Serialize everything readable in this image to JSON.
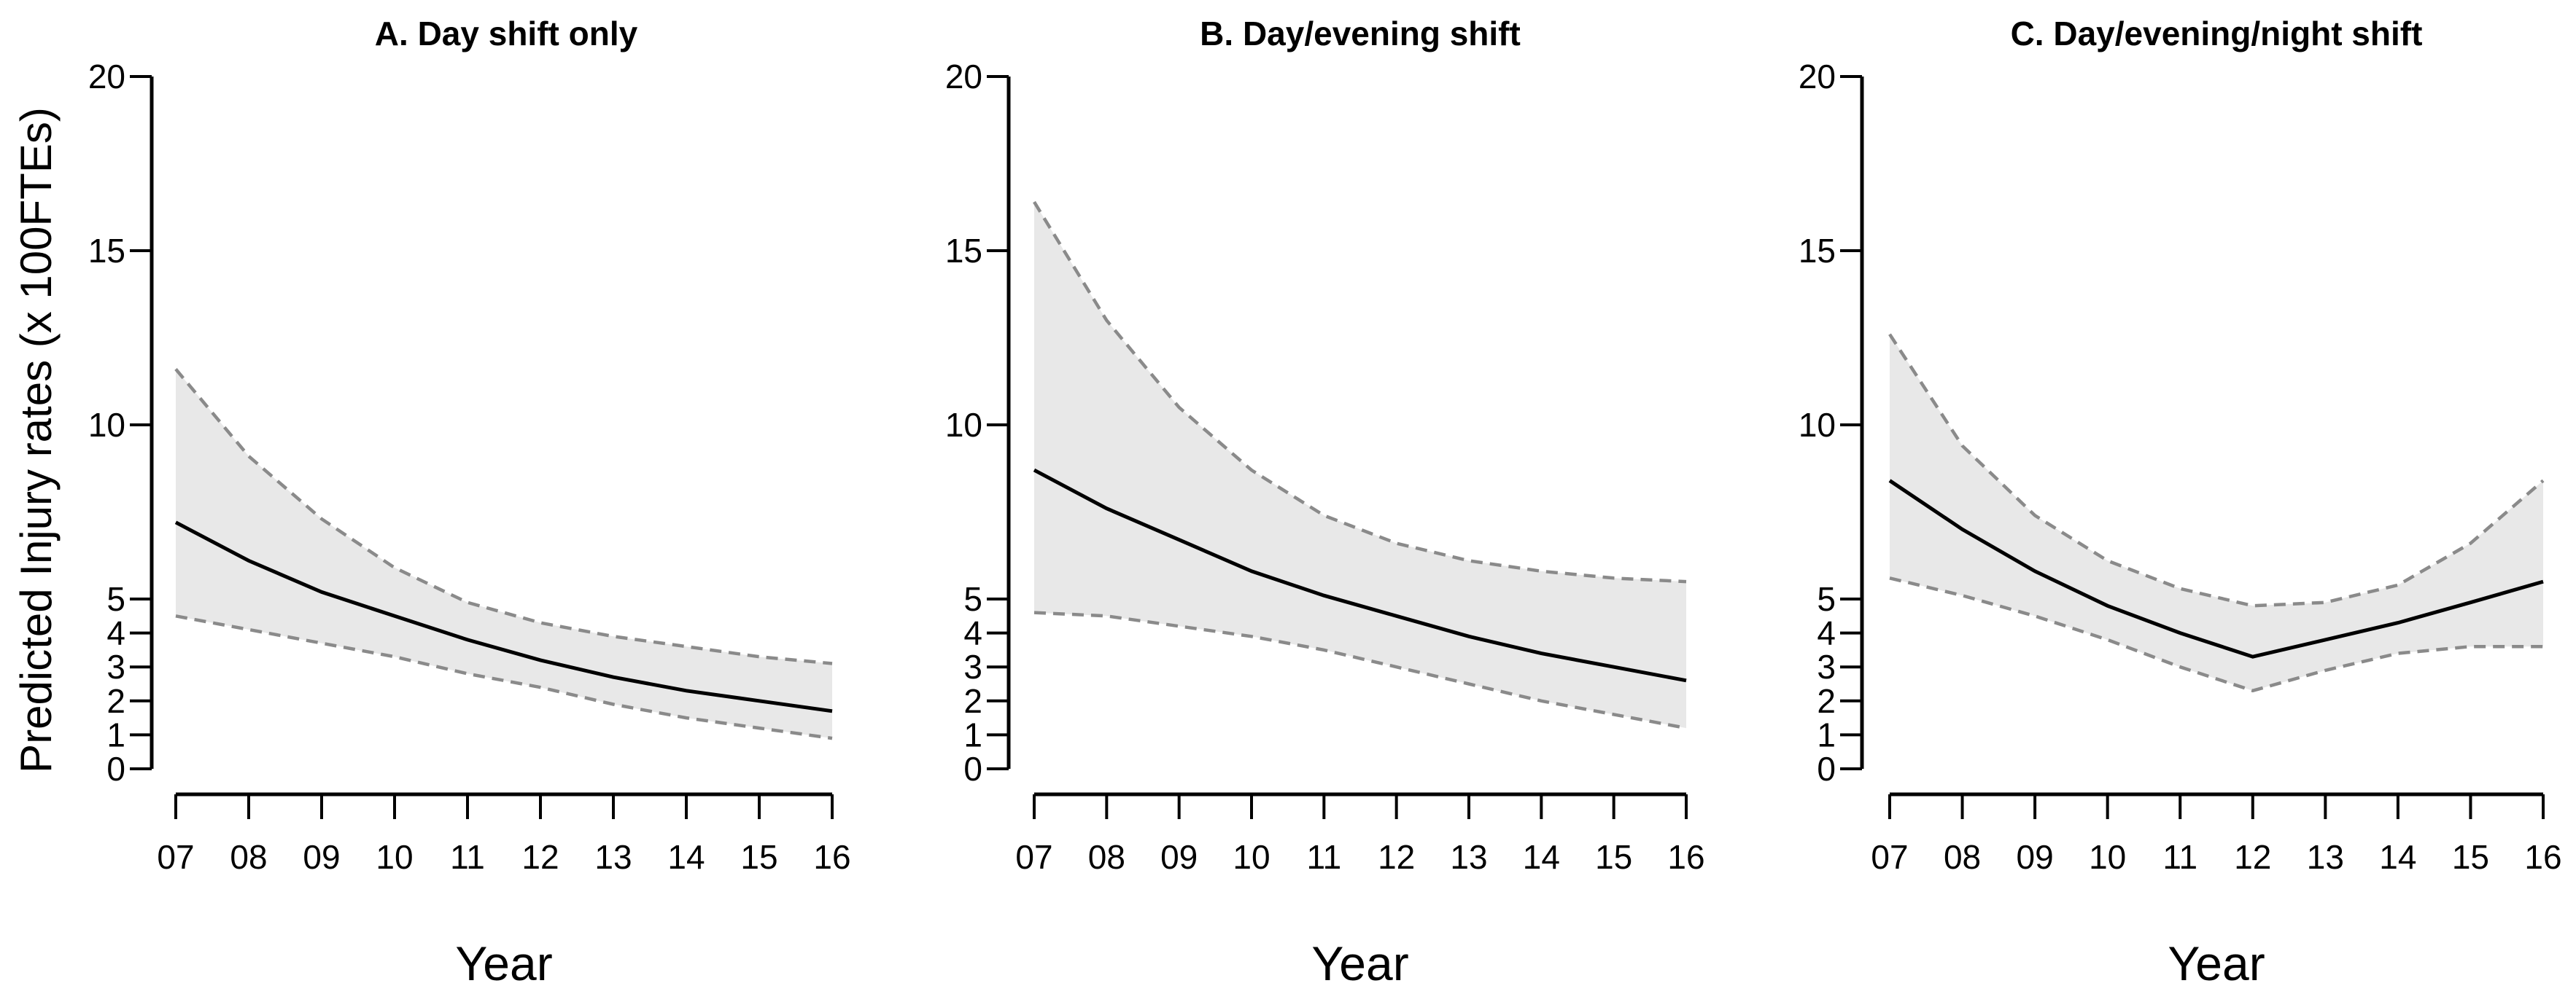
{
  "chart_data": {
    "type": "line",
    "ylabel": "Predicted Injury rates (x 100FTEs)",
    "xlabel": "Year",
    "x": [
      "07",
      "08",
      "09",
      "10",
      "11",
      "12",
      "13",
      "14",
      "15",
      "16"
    ],
    "ylim": [
      0,
      20
    ],
    "yticks": [
      0,
      1,
      2,
      3,
      4,
      5,
      10,
      15,
      20
    ],
    "panels": [
      {
        "title": "A. Day shift only",
        "series": [
          {
            "name": "Predicted rate",
            "values": [
              7.2,
              6.1,
              5.2,
              4.5,
              3.8,
              3.2,
              2.7,
              2.3,
              2.0,
              1.7
            ]
          },
          {
            "name": "Upper bound",
            "values": [
              11.6,
              9.1,
              7.3,
              5.9,
              4.9,
              4.3,
              3.9,
              3.6,
              3.3,
              3.1
            ]
          },
          {
            "name": "Lower bound",
            "values": [
              4.5,
              4.1,
              3.7,
              3.3,
              2.8,
              2.4,
              1.9,
              1.5,
              1.2,
              0.9
            ]
          }
        ]
      },
      {
        "title": "B. Day/evening shift",
        "series": [
          {
            "name": "Predicted rate",
            "values": [
              8.7,
              7.6,
              6.7,
              5.8,
              5.1,
              4.5,
              3.9,
              3.4,
              3.0,
              2.6
            ]
          },
          {
            "name": "Upper bound",
            "values": [
              16.4,
              13.0,
              10.5,
              8.7,
              7.4,
              6.6,
              6.1,
              5.8,
              5.6,
              5.5
            ]
          },
          {
            "name": "Lower bound",
            "values": [
              4.6,
              4.5,
              4.2,
              3.9,
              3.5,
              3.0,
              2.5,
              2.0,
              1.6,
              1.2
            ]
          }
        ]
      },
      {
        "title": "C. Day/evening/night shift",
        "series": [
          {
            "name": "Predicted rate",
            "values": [
              8.4,
              7.0,
              5.8,
              4.8,
              4.0,
              3.3,
              3.8,
              4.3,
              4.9,
              5.5
            ]
          },
          {
            "name": "Upper bound",
            "values": [
              12.6,
              9.4,
              7.4,
              6.1,
              5.3,
              4.8,
              4.9,
              5.4,
              6.6,
              8.4
            ]
          },
          {
            "name": "Lower bound",
            "values": [
              5.6,
              5.1,
              4.5,
              3.8,
              3.0,
              2.3,
              2.9,
              3.4,
              3.6,
              3.6
            ]
          }
        ]
      }
    ]
  }
}
